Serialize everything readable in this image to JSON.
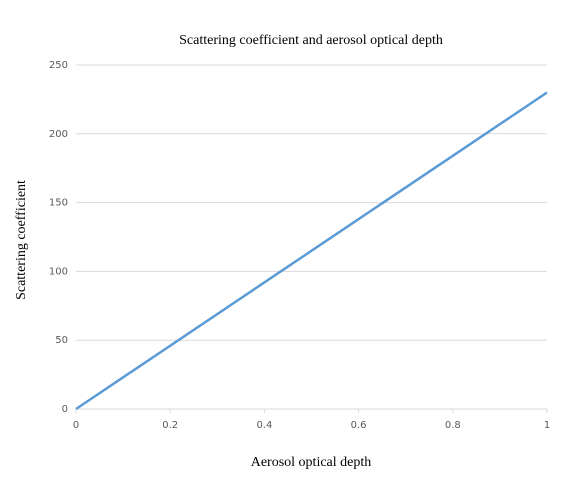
{
  "chart_data": {
    "type": "line",
    "title": "Scattering coefficient and aerosol optical depth",
    "x_label": "Aerosol optical depth",
    "y_label": "Scattering coefficient",
    "x": [
      0,
      1
    ],
    "series": [
      {
        "name": "Scattering coefficient",
        "color": "#5b9bd5",
        "values": [
          0,
          230
        ]
      }
    ],
    "xlim": [
      0,
      1
    ],
    "xticks": [
      0,
      0.2,
      0.4,
      0.6,
      0.8,
      1
    ],
    "ylim": [
      0,
      250
    ],
    "yticks": [
      0,
      50,
      100,
      150,
      200,
      250
    ],
    "grid": true
  }
}
